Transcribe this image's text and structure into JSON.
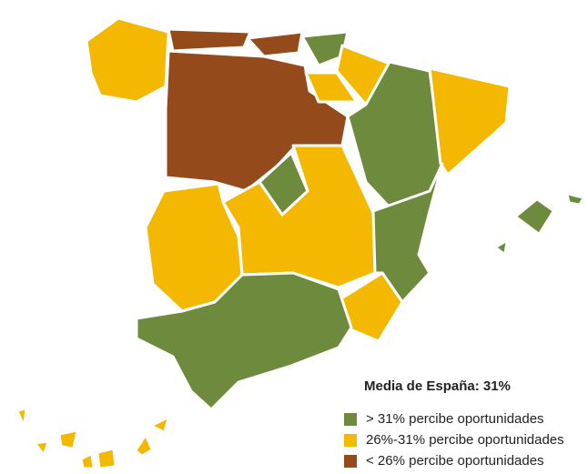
{
  "legend": {
    "title": "Media de España: 31%",
    "items": [
      {
        "label": "> 31% percibe oportunidades",
        "color": "#6e8b3d"
      },
      {
        "label": "26%-31% percibe oportunidades",
        "color": "#f5b800"
      },
      {
        "label": "< 26% percibe oportunidades",
        "color": "#944a1b"
      }
    ]
  }
}
